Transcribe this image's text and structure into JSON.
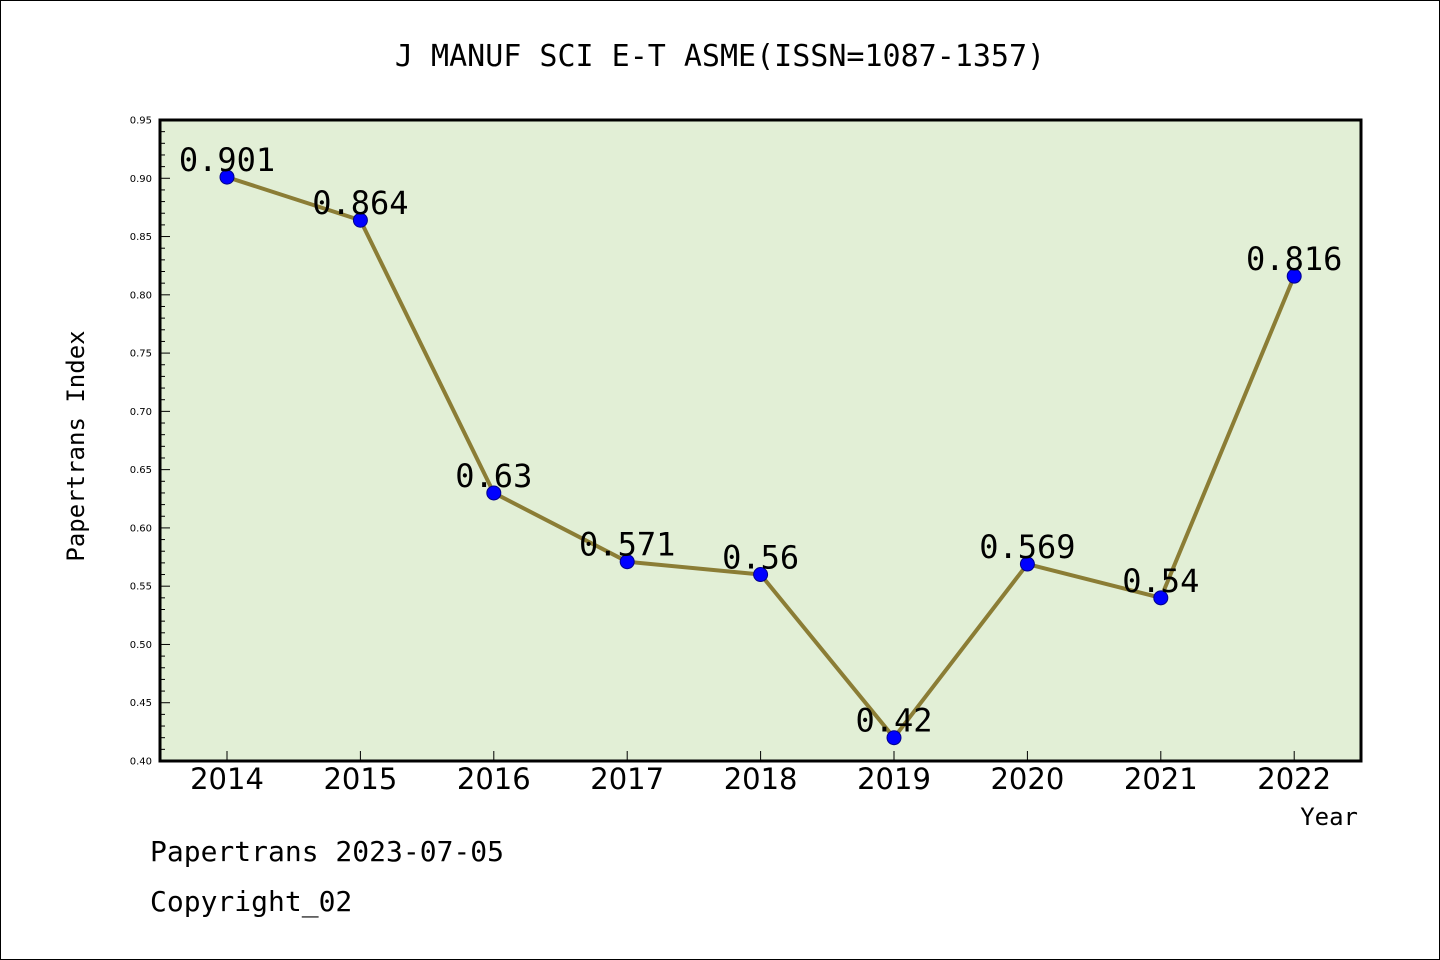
{
  "chart_data": {
    "type": "line",
    "title": "J MANUF SCI E-T ASME(ISSN=1087-1357)",
    "xlabel": "Year",
    "ylabel": "Papertrans Index",
    "categories": [
      "2014",
      "2015",
      "2016",
      "2017",
      "2018",
      "2019",
      "2020",
      "2021",
      "2022"
    ],
    "series": [
      {
        "values": [
          0.901,
          0.864,
          0.63,
          0.571,
          0.56,
          0.42,
          0.569,
          0.54,
          0.816
        ],
        "labels": [
          "0.901",
          "0.864",
          "0.63",
          "0.571",
          "0.56",
          "0.42",
          "0.569",
          "0.54",
          "0.816"
        ]
      }
    ],
    "ylim": [
      0.4,
      0.95
    ],
    "yticks": [
      "0.40",
      "0.45",
      "0.50",
      "0.55",
      "0.60",
      "0.65",
      "0.70",
      "0.75",
      "0.80",
      "0.85",
      "0.90",
      "0.95"
    ],
    "grid": false,
    "colors": {
      "plot_background": "#e2efd6",
      "line": "#8b7d35",
      "marker": "#0000ff"
    }
  },
  "footer": {
    "line1": "Papertrans 2023-07-05",
    "line2": "Copyright_02"
  }
}
